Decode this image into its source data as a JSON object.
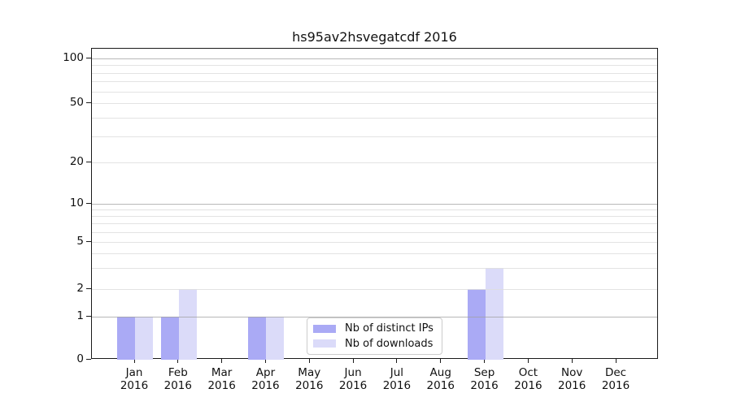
{
  "chart_data": {
    "type": "bar",
    "title": "hs95av2hsvegatcdf 2016",
    "categories": [
      "Jan",
      "Feb",
      "Mar",
      "Apr",
      "May",
      "Jun",
      "Jul",
      "Aug",
      "Sep",
      "Oct",
      "Nov",
      "Dec"
    ],
    "category_year": "2016",
    "series": [
      {
        "name": "Nb of distinct IPs",
        "color": "#aaaaf5",
        "values": [
          1,
          1,
          0,
          1,
          0,
          0,
          0,
          0,
          2,
          0,
          0,
          0
        ]
      },
      {
        "name": "Nb of downloads",
        "color": "#dbdbf9",
        "values": [
          1,
          2,
          0,
          1,
          0,
          0,
          0,
          0,
          3,
          0,
          0,
          0
        ]
      }
    ],
    "y_axis": {
      "scale": "symlog",
      "ylim": [
        0,
        100
      ],
      "tick_values": [
        0,
        1,
        2,
        5,
        10,
        20,
        50,
        100
      ],
      "tick_labels": [
        "0",
        "1",
        "2",
        "5",
        "10",
        "20",
        "50",
        "100"
      ],
      "major_grid_values": [
        1,
        10,
        100
      ],
      "minor_grid_values": [
        2,
        3,
        4,
        5,
        6,
        7,
        8,
        9,
        20,
        30,
        40,
        50,
        60,
        70,
        80,
        90
      ]
    },
    "legend": {
      "position": "lower-center",
      "entries": [
        "Nb of distinct IPs",
        "Nb of downloads"
      ]
    },
    "colors": {
      "major_grid": "rgba(160,160,160,0.75)",
      "minor_grid": "rgba(222,222,222,0.85)",
      "spine": "#1a1a1a",
      "text": "#111111"
    },
    "grid_on": true,
    "grid_above_bars": true
  }
}
